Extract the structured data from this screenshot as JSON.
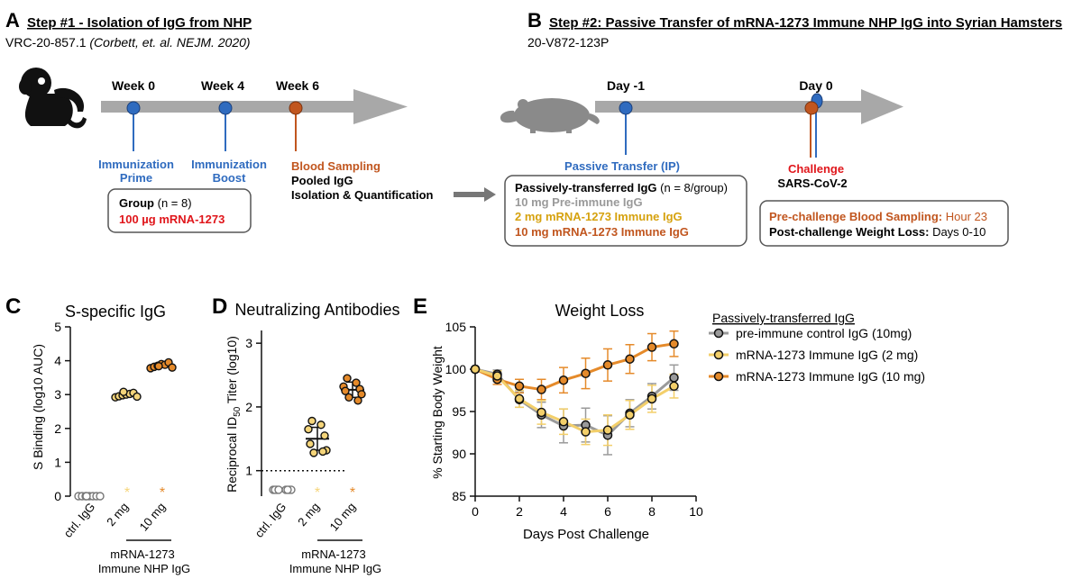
{
  "colors": {
    "blue": "#2f6bbf",
    "orange": "#c1561f",
    "red": "#e0161b",
    "gold": "#d6a20f",
    "lightgold": "#f5d57a",
    "gray": "#9a9a9a",
    "darkorange": "#e58a2a",
    "arrow": "#a8a8a8"
  },
  "panelA": {
    "letter": "A",
    "title": "Step #1 - Isolation of IgG from NHP",
    "sub_plain": "VRC-20-857.1 ",
    "sub_italic": "(Corbett, et. al. NEJM. 2020)",
    "timepoints": [
      {
        "label": "Week 0",
        "desc1": "Immunization",
        "desc2": "Prime",
        "color": "blue"
      },
      {
        "label": "Week  4",
        "desc1": "Immunization",
        "desc2": "Boost",
        "color": "blue"
      },
      {
        "label": "Week 6",
        "desc1": "Blood Sampling",
        "desc2": "Pooled IgG",
        "desc3": "Isolation & Quantification",
        "color": "orange"
      }
    ],
    "group_label": "Group",
    "group_n": " (n = 8)",
    "group_dose": "100 µg mRNA-1273"
  },
  "panelB": {
    "letter": "B",
    "title": "Step #2: Passive Transfer of mRNA-1273 Immune NHP IgG into Syrian Hamsters",
    "sub": "20-V872-123P",
    "day_minus1": "Day -1",
    "day0": "Day 0",
    "passive_label": "Passive Transfer (IP)",
    "challenge_label": "Challenge",
    "challenge_virus": "SARS-CoV-2",
    "box_title": "Passively-transferred IgG",
    "box_n": " (n = 8/group)",
    "box_items": [
      "10 mg Pre-immune IgG",
      "2 mg mRNA-1273 Immune IgG",
      "10 mg mRNA-1273 Immune IgG"
    ],
    "pre_bold": "Pre-challenge Blood Sampling:",
    "pre_rest": " Hour 23",
    "post_bold": "Post-challenge Weight Loss:",
    "post_rest": " Days 0-10"
  },
  "chart_data": [
    {
      "letter": "C",
      "type": "scatter",
      "title": "S-specific IgG",
      "ylabel": "S Binding (log10 AUC)",
      "ylim": [
        0,
        5
      ],
      "yticks": [
        0,
        1,
        2,
        3,
        4,
        5
      ],
      "categories": [
        "ctrl. IgG",
        "2 mg",
        "10 mg"
      ],
      "group_label1": "mRNA-1273",
      "group_label2": "Immune NHP IgG",
      "series": [
        {
          "name": "ctrl. IgG",
          "values": [
            0,
            0,
            0,
            0,
            0,
            0,
            0,
            0
          ],
          "color": "gray"
        },
        {
          "name": "2 mg",
          "values": [
            2.92,
            2.95,
            2.98,
            3.0,
            3.02,
            3.05,
            2.94,
            3.08
          ],
          "color": "lightgold",
          "mean": 3.0,
          "sd": 0.05
        },
        {
          "name": "10 mg",
          "values": [
            3.78,
            3.82,
            3.85,
            3.9,
            3.88,
            3.95,
            3.8,
            3.84
          ],
          "color": "darkorange",
          "mean": 3.86,
          "sd": 0.05
        }
      ],
      "stars": [
        "*",
        "*"
      ]
    },
    {
      "letter": "D",
      "type": "scatter",
      "title": "Neutralizing Antibodies",
      "ylabel_pre": "Reciprocal ID",
      "ylabel_sub": "50",
      "ylabel_post": " Titer (log10)",
      "ylim": [
        0.6,
        3.2
      ],
      "yticks": [
        1,
        2,
        3
      ],
      "threshold": 1.0,
      "categories": [
        "ctrl. IgG",
        "2 mg",
        "10 mg"
      ],
      "group_label1": "mRNA-1273",
      "group_label2": "Immune NHP IgG",
      "series": [
        {
          "name": "ctrl. IgG",
          "values": [
            0.7,
            0.7,
            0.7,
            0.7,
            0.7,
            0.7,
            0.7,
            0.7
          ],
          "color": "gray"
        },
        {
          "name": "2 mg",
          "values": [
            1.78,
            1.72,
            1.65,
            1.55,
            1.42,
            1.32,
            1.28,
            1.3
          ],
          "color": "lightgold",
          "mean": 1.5,
          "sd": 0.18
        },
        {
          "name": "10 mg",
          "values": [
            2.45,
            2.38,
            2.32,
            2.28,
            2.25,
            2.2,
            2.15,
            2.1
          ],
          "color": "darkorange",
          "mean": 2.27,
          "sd": 0.12
        }
      ],
      "stars": [
        "*",
        "*"
      ]
    },
    {
      "letter": "E",
      "type": "line",
      "title": "Weight Loss",
      "xlabel": "Days Post Challenge",
      "ylabel": "% Starting Body Weight",
      "xlim": [
        0,
        10
      ],
      "ylim": [
        85,
        105
      ],
      "xticks": [
        0,
        2,
        4,
        6,
        8,
        10
      ],
      "yticks": [
        85,
        90,
        95,
        100,
        105
      ],
      "x": [
        0,
        1,
        2,
        3,
        4,
        5,
        6,
        7,
        8,
        9
      ],
      "legend_title": "Passively-transferred IgG",
      "series": [
        {
          "name": "pre-immune control IgG (10mg)",
          "color": "gray",
          "values": [
            100,
            99.4,
            96.4,
            94.6,
            93.3,
            93.4,
            92.2,
            94.8,
            96.8,
            99.0
          ],
          "err": [
            0,
            0.5,
            0.9,
            1.5,
            2.0,
            2.0,
            2.3,
            1.6,
            1.5,
            1.5
          ]
        },
        {
          "name": "mRNA-1273 Immune IgG (2 mg)",
          "color": "lightgold",
          "values": [
            100,
            99.2,
            96.5,
            94.9,
            93.8,
            92.6,
            92.8,
            94.6,
            96.5,
            98.0
          ],
          "err": [
            0,
            0.6,
            1.0,
            1.4,
            1.5,
            1.5,
            1.8,
            1.7,
            1.6,
            1.4
          ]
        },
        {
          "name": "mRNA-1273 Immune IgG (10 mg)",
          "color": "darkorange",
          "values": [
            100,
            98.8,
            98.0,
            97.6,
            98.7,
            99.5,
            100.5,
            101.2,
            102.6,
            103.0
          ],
          "err": [
            0,
            0.6,
            0.8,
            1.2,
            1.5,
            1.8,
            1.9,
            1.7,
            1.6,
            1.5
          ]
        }
      ]
    }
  ]
}
